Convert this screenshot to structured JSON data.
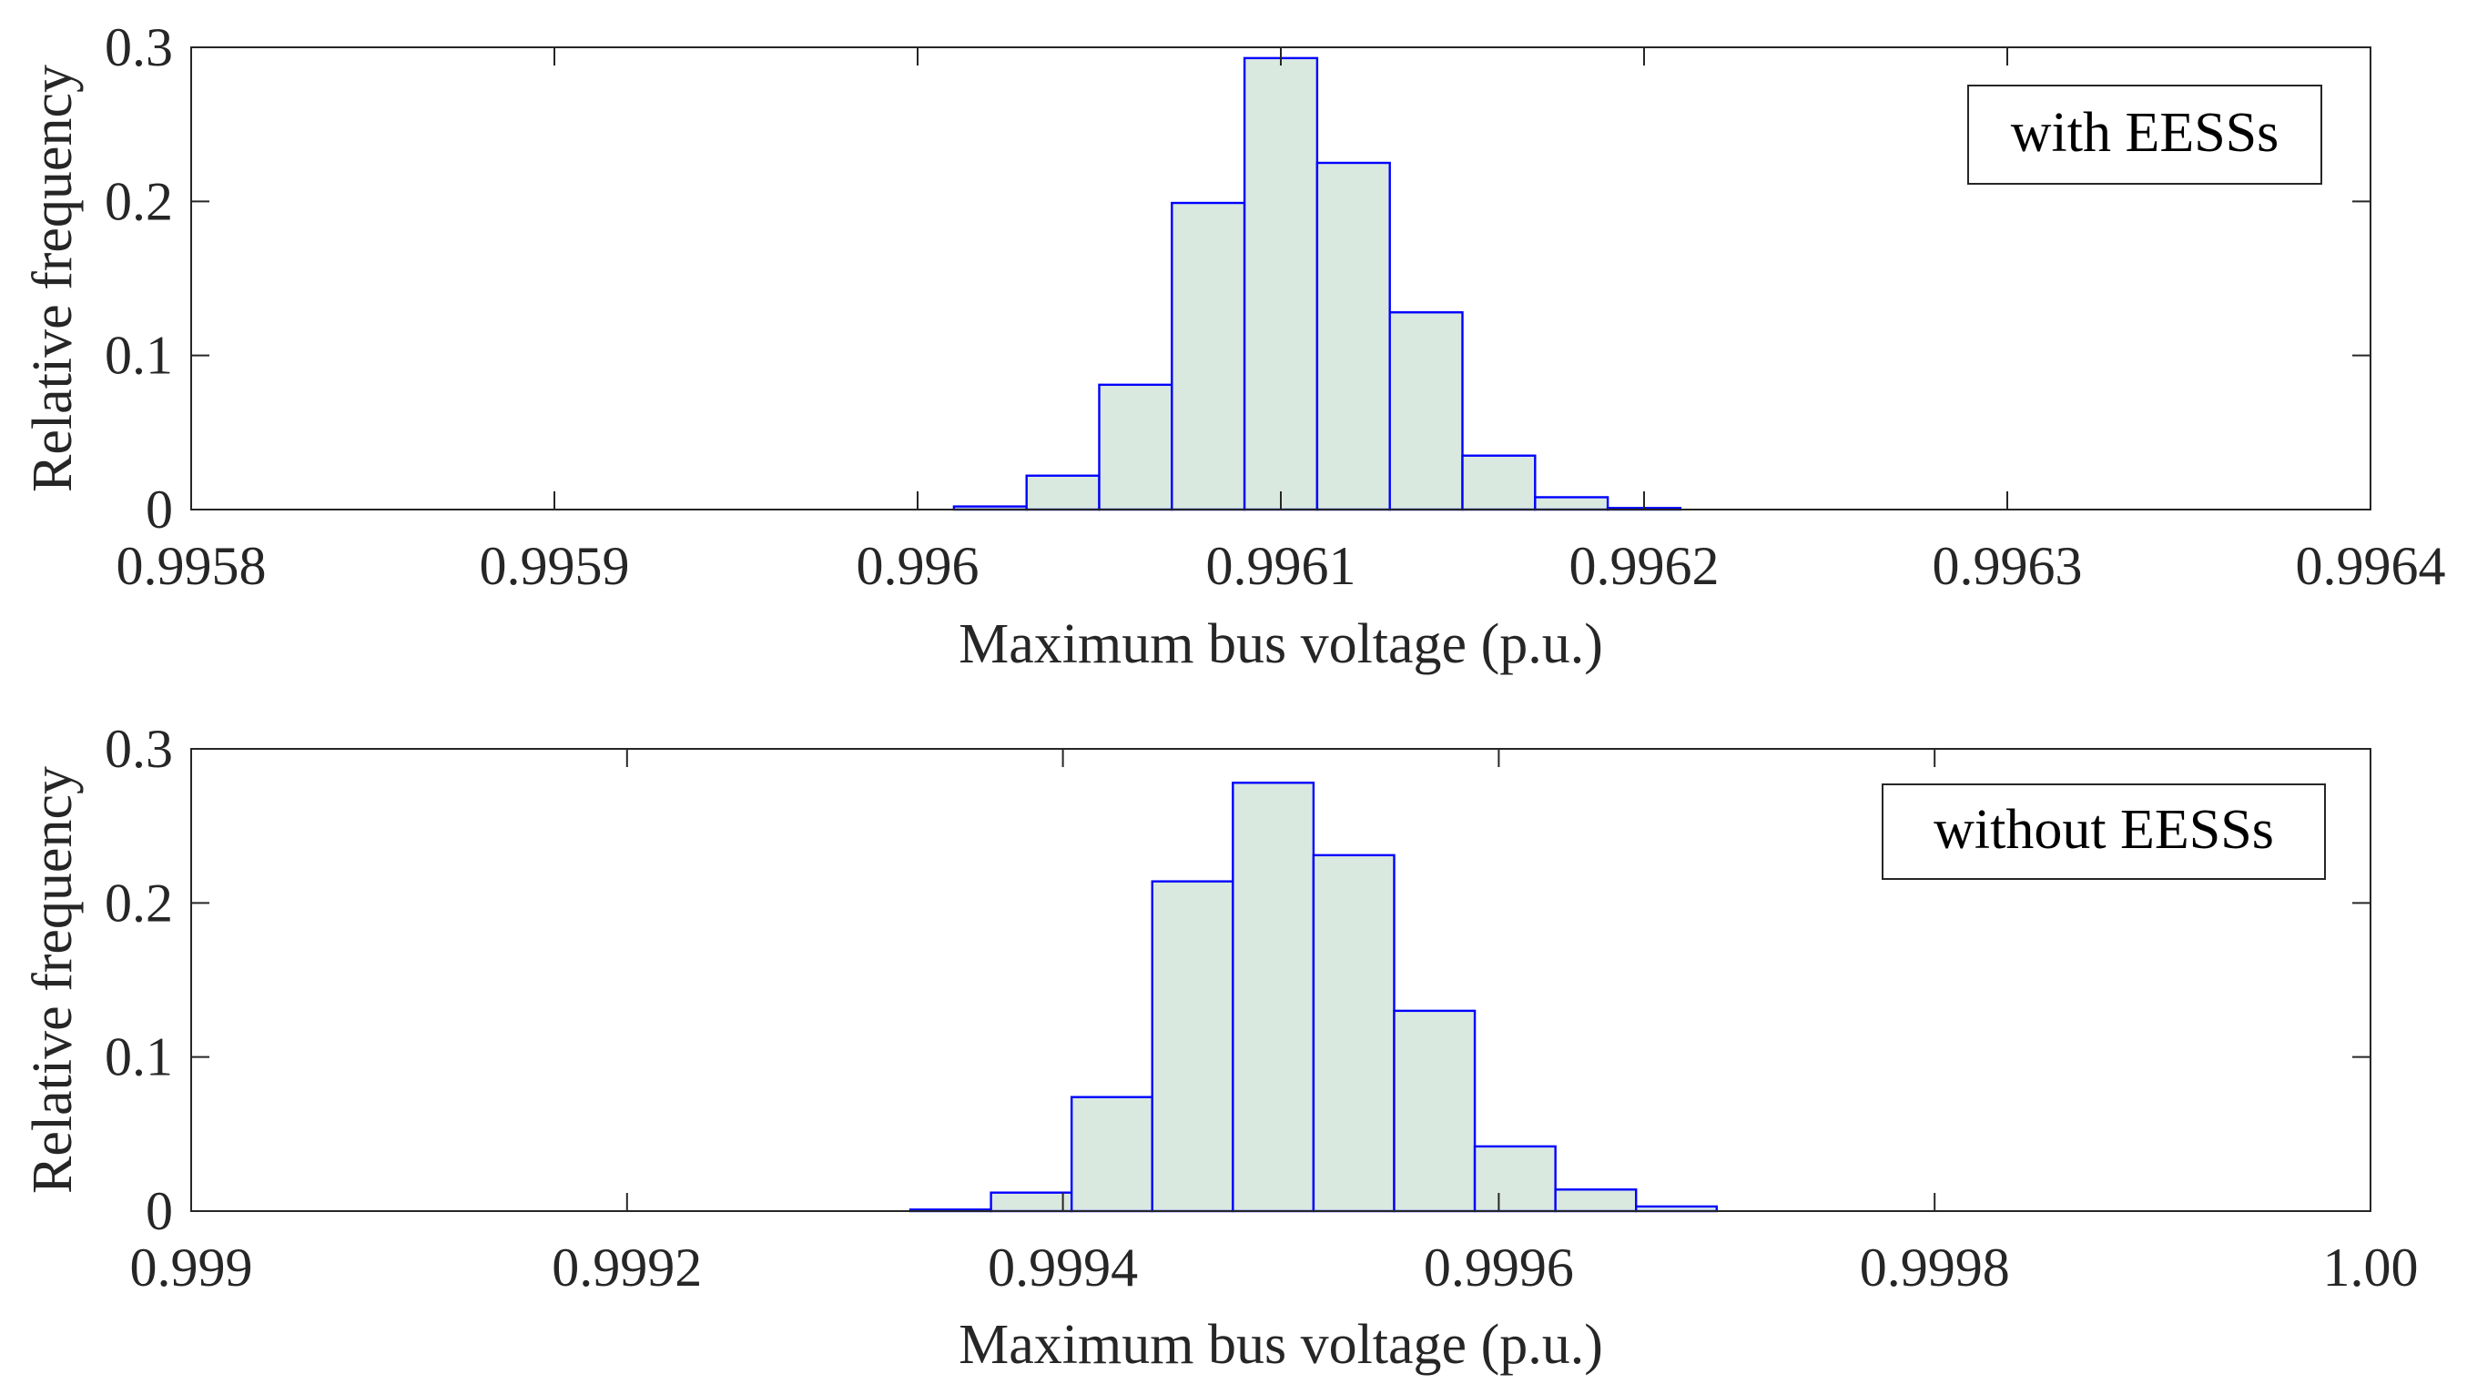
{
  "chart_data": [
    {
      "type": "bar",
      "panel": "top",
      "legend": "with EESSs",
      "legend_position": "top-right",
      "xlabel": "Maximum bus voltage (p.u.)",
      "ylabel": "Relative frequency",
      "xlim": [
        0.9958,
        0.9964
      ],
      "ylim": [
        0,
        0.3
      ],
      "xticks": [
        "0.9958",
        "0.9959",
        "0.996",
        "0.9961",
        "0.9962",
        "0.9963",
        "0.9964"
      ],
      "xtick_values": [
        0.9958,
        0.9959,
        0.996,
        0.9961,
        0.9962,
        0.9963,
        0.9964
      ],
      "yticks": [
        "0",
        "0.1",
        "0.2",
        "0.3"
      ],
      "ytick_values": [
        0,
        0.1,
        0.2,
        0.3
      ],
      "bin_edges": [
        0.99601,
        0.99603,
        0.99605,
        0.99607,
        0.99609,
        0.99611,
        0.99613,
        0.99615,
        0.99617,
        0.99619,
        0.99621
      ],
      "values": [
        0.002,
        0.022,
        0.081,
        0.199,
        0.293,
        0.225,
        0.128,
        0.035,
        0.008,
        0.001
      ],
      "bar_fill": "#d9e9df",
      "bar_edge": "#0000ff"
    },
    {
      "type": "bar",
      "panel": "bottom",
      "legend": "without EESSs",
      "legend_position": "top-right",
      "xlabel": "Maximum bus voltage (p.u.)",
      "ylabel": "Relative frequency",
      "xlim": [
        0.999,
        1.0
      ],
      "ylim": [
        0,
        0.3
      ],
      "xticks": [
        "0.999",
        "0.9992",
        "0.9994",
        "0.9996",
        "0.9998",
        "1.00"
      ],
      "xtick_values": [
        0.999,
        0.9992,
        0.9994,
        0.9996,
        0.9998,
        1.0
      ],
      "yticks": [
        "0",
        "0.1",
        "0.2",
        "0.3"
      ],
      "ytick_values": [
        0,
        0.1,
        0.2,
        0.3
      ],
      "bin_edges": [
        0.99933,
        0.999367,
        0.999404,
        0.999441,
        0.999478,
        0.999515,
        0.999552,
        0.999589,
        0.999626,
        0.999663,
        0.9997
      ],
      "values": [
        0.001,
        0.012,
        0.074,
        0.214,
        0.278,
        0.231,
        0.13,
        0.042,
        0.014,
        0.003
      ],
      "bar_fill": "#d9e9df",
      "bar_edge": "#0000ff"
    }
  ]
}
